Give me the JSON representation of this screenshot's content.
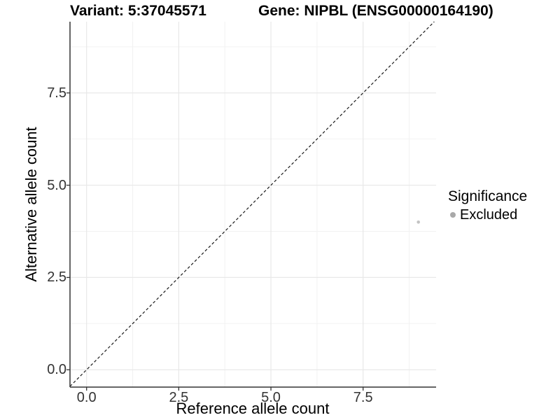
{
  "figure": {
    "background": "#ffffff",
    "title_left": "Variant: 5:37045571",
    "title_right": "Gene: NIPBL (ENSG00000164190)"
  },
  "chart_data": {
    "type": "scatter",
    "title_left": "Variant: 5:37045571",
    "title_right": "Gene: NIPBL (ENSG00000164190)",
    "xlabel": "Reference allele count",
    "ylabel": "Alternative allele count",
    "xlim": [
      -0.45,
      9.48
    ],
    "ylim": [
      -0.47,
      9.43
    ],
    "x_major_ticks": [
      0,
      2.5,
      5,
      7.5
    ],
    "x_tick_labels": [
      "0.0",
      "2.5",
      "5.0",
      "7.5"
    ],
    "y_major_ticks": [
      0,
      2.5,
      5,
      7.5
    ],
    "y_tick_labels": [
      "0.0",
      "2.5",
      "5.0",
      "7.5"
    ],
    "x_minor_ticks": [
      1.25,
      3.75,
      6.25,
      8.75
    ],
    "y_minor_ticks": [
      1.25,
      3.75,
      6.25,
      8.75
    ],
    "grid": true,
    "grid_major_color": "#e8e8e8",
    "grid_minor_color": "#f2f2f2",
    "axis_line_color": "#333333",
    "reference_line": {
      "type": "identity",
      "slope": 1,
      "intercept": 0,
      "style": "dashed",
      "color": "#1a1a1a"
    },
    "series": [
      {
        "name": "Excluded",
        "color": "#c3c3c3",
        "point_radius": 2.3,
        "points": [
          {
            "x": 9,
            "y": 4
          }
        ]
      }
    ],
    "legend": {
      "title": "Significance",
      "position": "right",
      "entries": [
        {
          "label": "Excluded",
          "color": "#a9a9a9",
          "marker": "circle"
        }
      ]
    }
  }
}
